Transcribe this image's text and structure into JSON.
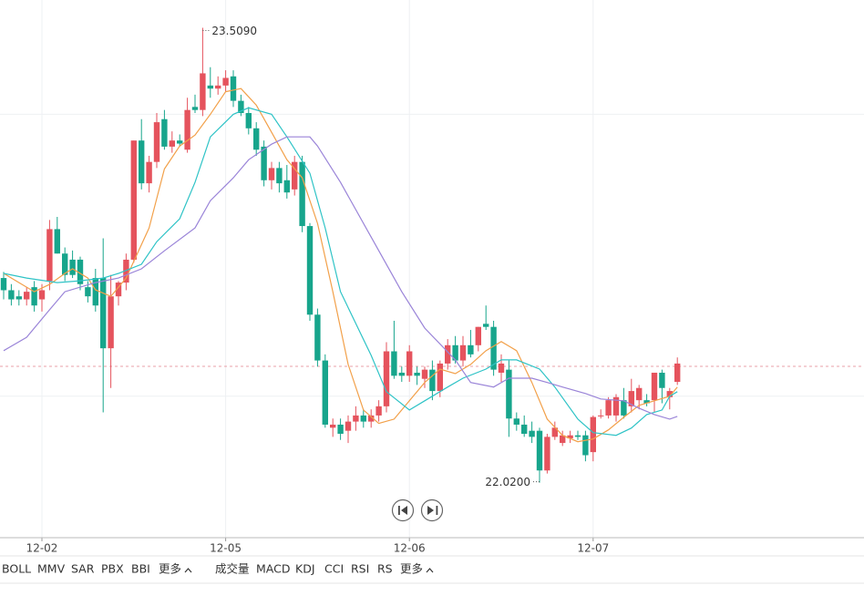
{
  "chart_data": {
    "type": "candlestick",
    "categories": [
      null,
      null,
      null,
      null,
      null,
      "12-02",
      null,
      null,
      null,
      null,
      null,
      null,
      null,
      null,
      null,
      null,
      null,
      null,
      null,
      null,
      null,
      null,
      null,
      null,
      null,
      null,
      null,
      null,
      null,
      "12-05",
      null,
      null,
      null,
      null,
      null,
      null,
      null,
      null,
      null,
      null,
      null,
      null,
      null,
      null,
      null,
      null,
      null,
      null,
      null,
      null,
      null,
      null,
      null,
      "12-06",
      null,
      null,
      null,
      null,
      null,
      null,
      null,
      null,
      null,
      null,
      null,
      null,
      null,
      null,
      null,
      null,
      null,
      null,
      null,
      null,
      null,
      null,
      null,
      "12-07",
      null,
      null,
      null,
      null,
      null,
      null,
      null,
      null,
      null,
      null,
      null
    ],
    "open": [
      22.69,
      22.65,
      22.63,
      22.62,
      22.66,
      22.62,
      22.68,
      22.85,
      22.77,
      22.75,
      22.75,
      22.66,
      22.69,
      22.69,
      22.46,
      22.63,
      22.675,
      22.75,
      23.14,
      23.0,
      23.07,
      23.21,
      23.12,
      23.14,
      23.11,
      23.25,
      23.24,
      23.32,
      23.31,
      23.32,
      23.35,
      23.27,
      23.23,
      23.18,
      23.12,
      23.01,
      23.05,
      23.01,
      22.98,
      23.07,
      22.86,
      22.57,
      22.42,
      22.2,
      22.21,
      22.19,
      22.22,
      22.24,
      22.22,
      22.24,
      22.27,
      22.45,
      22.38,
      22.37,
      22.38,
      22.36,
      22.39,
      22.32,
      22.41,
      22.47,
      22.42,
      22.47,
      22.47,
      22.54,
      22.53,
      22.38,
      22.39,
      22.23,
      22.21,
      22.19,
      22.19,
      22.06,
      22.17,
      22.15,
      22.165,
      22.175,
      22.175,
      22.12,
      22.24,
      22.24,
      22.24,
      22.29,
      22.27,
      22.29,
      22.29,
      22.29,
      22.38,
      22.3,
      22.35
    ],
    "high": [
      22.71,
      22.67,
      22.65,
      22.66,
      22.68,
      22.67,
      22.88,
      22.89,
      22.79,
      22.78,
      22.76,
      22.68,
      22.72,
      22.82,
      22.7,
      22.68,
      22.77,
      23.14,
      23.21,
      23.09,
      23.23,
      23.24,
      23.17,
      23.16,
      23.28,
      23.29,
      23.509,
      23.38,
      23.35,
      23.37,
      23.37,
      23.29,
      23.25,
      23.2,
      23.14,
      23.07,
      23.07,
      23.06,
      23.09,
      23.09,
      22.87,
      22.59,
      22.44,
      22.23,
      22.23,
      22.24,
      22.27,
      22.26,
      22.26,
      22.29,
      22.48,
      22.55,
      22.4,
      22.47,
      22.4,
      22.4,
      22.42,
      22.42,
      22.49,
      22.5,
      22.5,
      22.52,
      22.53,
      22.6,
      22.55,
      22.44,
      22.42,
      22.25,
      22.24,
      22.22,
      22.2,
      22.18,
      22.22,
      22.19,
      22.19,
      22.19,
      22.19,
      22.24,
      22.26,
      22.3,
      22.31,
      22.33,
      22.36,
      22.34,
      22.31,
      22.38,
      22.39,
      22.33,
      22.43
    ],
    "low": [
      22.62,
      22.6,
      22.6,
      22.6,
      22.58,
      22.58,
      22.65,
      22.77,
      22.68,
      22.69,
      22.65,
      22.61,
      22.58,
      22.25,
      22.33,
      22.6,
      22.65,
      22.74,
      22.98,
      22.97,
      23.05,
      23.11,
      23.1,
      23.12,
      23.1,
      23.23,
      23.22,
      23.28,
      23.29,
      23.3,
      23.25,
      23.22,
      23.16,
      23.09,
      22.99,
      22.98,
      22.97,
      22.95,
      22.96,
      22.84,
      22.55,
      22.4,
      22.2,
      22.17,
      22.16,
      22.15,
      22.19,
      22.2,
      22.2,
      22.22,
      22.25,
      22.36,
      22.35,
      22.35,
      22.34,
      22.33,
      22.29,
      22.3,
      22.39,
      22.41,
      22.4,
      22.43,
      22.45,
      22.52,
      22.37,
      22.35,
      22.17,
      22.19,
      22.17,
      22.15,
      22.02,
      22.05,
      22.16,
      22.14,
      22.15,
      22.16,
      22.09,
      22.09,
      22.23,
      22.23,
      22.22,
      22.23,
      22.25,
      22.26,
      22.27,
      22.25,
      22.28,
      22.26,
      22.34
    ],
    "close": [
      22.65,
      22.62,
      22.62,
      22.645,
      22.6,
      22.65,
      22.85,
      22.77,
      22.7,
      22.7,
      22.67,
      22.63,
      22.6,
      22.46,
      22.63,
      22.675,
      22.75,
      23.14,
      23.0,
      23.07,
      23.2,
      23.12,
      23.14,
      23.13,
      23.24,
      23.24,
      23.36,
      23.31,
      23.32,
      23.345,
      23.27,
      23.23,
      23.18,
      23.11,
      23.01,
      23.05,
      23.0,
      22.97,
      23.07,
      22.86,
      22.57,
      22.42,
      22.21,
      22.21,
      22.18,
      22.22,
      22.24,
      22.22,
      22.24,
      22.27,
      22.45,
      22.37,
      22.37,
      22.45,
      22.37,
      22.39,
      22.32,
      22.41,
      22.47,
      22.42,
      22.47,
      22.44,
      22.53,
      22.53,
      22.39,
      22.41,
      22.23,
      22.21,
      22.18,
      22.17,
      22.06,
      22.17,
      22.2,
      22.175,
      22.175,
      22.17,
      22.11,
      22.235,
      22.24,
      22.29,
      22.3,
      22.24,
      22.32,
      22.33,
      22.28,
      22.38,
      22.33,
      22.32,
      22.41
    ],
    "up_color": "#e5535d",
    "down_color": "#17a58c",
    "lines": [
      {
        "color": "#f2a049",
        "x": [
          0,
          2,
          4,
          6,
          8,
          9,
          11,
          12,
          14,
          16,
          19,
          21,
          23,
          25,
          27,
          29,
          31,
          33,
          35,
          37,
          39,
          41,
          43,
          45,
          47,
          49,
          51,
          53,
          55,
          57,
          59,
          61,
          63,
          65,
          67,
          69,
          71,
          73,
          75,
          77,
          79,
          81,
          83,
          85,
          87,
          88
        ],
        "values": [
          22.705,
          22.675,
          22.645,
          22.669,
          22.705,
          22.72,
          22.69,
          22.651,
          22.63,
          22.69,
          22.854,
          23.047,
          23.122,
          23.158,
          23.226,
          23.3,
          23.31,
          23.256,
          23.167,
          23.077,
          23.018,
          22.869,
          22.645,
          22.407,
          22.258,
          22.214,
          22.228,
          22.288,
          22.348,
          22.392,
          22.377,
          22.407,
          22.452,
          22.482,
          22.452,
          22.348,
          22.228,
          22.175,
          22.154,
          22.163,
          22.193,
          22.234,
          22.273,
          22.288,
          22.303,
          22.333
        ]
      },
      {
        "color": "#2ec3c6",
        "x": [
          0,
          3,
          7,
          10,
          13,
          15,
          18,
          20,
          23,
          25,
          27,
          30,
          32,
          35,
          37,
          40,
          42,
          44,
          48,
          50,
          53,
          55,
          58,
          60,
          63,
          65,
          67,
          70,
          72,
          75,
          77,
          80,
          82,
          84,
          86,
          87,
          88
        ],
        "values": [
          22.705,
          22.69,
          22.675,
          22.681,
          22.69,
          22.705,
          22.735,
          22.809,
          22.884,
          23.003,
          23.152,
          23.226,
          23.247,
          23.226,
          23.152,
          23.033,
          22.854,
          22.645,
          22.437,
          22.318,
          22.258,
          22.288,
          22.333,
          22.362,
          22.392,
          22.422,
          22.422,
          22.392,
          22.333,
          22.228,
          22.184,
          22.175,
          22.199,
          22.243,
          22.258,
          22.303,
          22.318
        ]
      },
      {
        "color": "#9a84d8",
        "x": [
          0,
          3,
          6,
          8,
          12,
          15,
          18,
          21,
          25,
          27,
          30,
          32,
          35,
          37,
          40,
          41,
          44,
          48,
          52,
          55,
          59,
          61,
          64,
          66,
          69,
          71,
          73,
          76,
          78,
          81,
          83,
          85,
          87,
          88
        ],
        "values": [
          22.452,
          22.496,
          22.586,
          22.645,
          22.675,
          22.69,
          22.72,
          22.779,
          22.854,
          22.943,
          23.018,
          23.077,
          23.128,
          23.152,
          23.152,
          23.122,
          23.003,
          22.824,
          22.645,
          22.526,
          22.422,
          22.348,
          22.333,
          22.362,
          22.362,
          22.348,
          22.333,
          22.312,
          22.294,
          22.288,
          22.264,
          22.243,
          22.228,
          22.237
        ]
      }
    ],
    "ylim": [
      21.84,
      23.6
    ],
    "grid_levels": [
      23.226,
      22.303
    ],
    "price_line": 22.401,
    "annotations": [
      {
        "index": 26,
        "value": 23.509,
        "label": "23.5090",
        "side": "right"
      },
      {
        "index": 70,
        "value": 22.02,
        "label": "22.0200",
        "side": "left"
      }
    ]
  },
  "tabs": {
    "left": [
      "BOLL",
      "MMV",
      "SAR",
      "PBX",
      "BBI",
      "更多"
    ],
    "right": [
      "成交量",
      "MACD",
      "KDJ",
      "CCI",
      "RSI",
      "RS",
      "更多"
    ]
  }
}
